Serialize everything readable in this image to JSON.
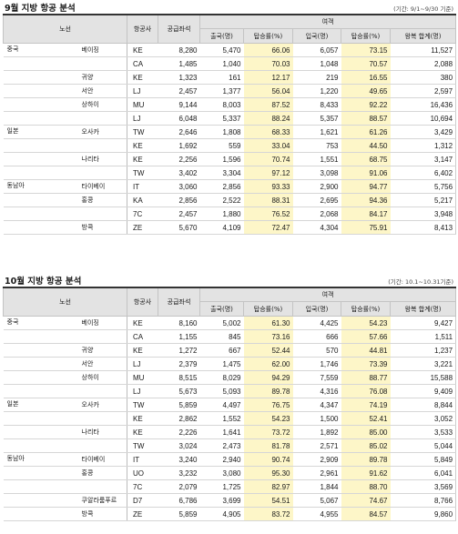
{
  "sept": {
    "title": "9월 지방 항공 분석",
    "period": "(기간: 9/1~9/30 기준)",
    "headers": {
      "route": "노선",
      "airline": "항공사",
      "seats": "공급좌석",
      "passengers": "여객",
      "departure": "출국(명)",
      "dep_rate": "탑승률(%)",
      "arrival": "입국(명)",
      "arr_rate": "탑승률(%)",
      "round_total": "왕복 합계(명)"
    },
    "rows": [
      {
        "region": "중국",
        "route": "베이징",
        "airline": "KE",
        "seats": "8,280",
        "dep": "5,470",
        "dep_rate": "66.06",
        "arr": "6,057",
        "arr_rate": "73.15",
        "total": "11,527"
      },
      {
        "region": "",
        "route": "",
        "airline": "CA",
        "seats": "1,485",
        "dep": "1,040",
        "dep_rate": "70.03",
        "arr": "1,048",
        "arr_rate": "70.57",
        "total": "2,088"
      },
      {
        "region": "",
        "route": "귀양",
        "airline": "KE",
        "seats": "1,323",
        "dep": "161",
        "dep_rate": "12.17",
        "arr": "219",
        "arr_rate": "16.55",
        "total": "380"
      },
      {
        "region": "",
        "route": "서안",
        "airline": "LJ",
        "seats": "2,457",
        "dep": "1,377",
        "dep_rate": "56.04",
        "arr": "1,220",
        "arr_rate": "49.65",
        "total": "2,597"
      },
      {
        "region": "",
        "route": "상하이",
        "airline": "MU",
        "seats": "9,144",
        "dep": "8,003",
        "dep_rate": "87.52",
        "arr": "8,433",
        "arr_rate": "92.22",
        "total": "16,436"
      },
      {
        "region": "",
        "route": "",
        "airline": "LJ",
        "seats": "6,048",
        "dep": "5,337",
        "dep_rate": "88.24",
        "arr": "5,357",
        "arr_rate": "88.57",
        "total": "10,694"
      },
      {
        "region": "일본",
        "route": "오사카",
        "airline": "TW",
        "seats": "2,646",
        "dep": "1,808",
        "dep_rate": "68.33",
        "arr": "1,621",
        "arr_rate": "61.26",
        "total": "3,429"
      },
      {
        "region": "",
        "route": "",
        "airline": "KE",
        "seats": "1,692",
        "dep": "559",
        "dep_rate": "33.04",
        "arr": "753",
        "arr_rate": "44.50",
        "total": "1,312"
      },
      {
        "region": "",
        "route": "나리타",
        "airline": "KE",
        "seats": "2,256",
        "dep": "1,596",
        "dep_rate": "70.74",
        "arr": "1,551",
        "arr_rate": "68.75",
        "total": "3,147"
      },
      {
        "region": "",
        "route": "",
        "airline": "TW",
        "seats": "3,402",
        "dep": "3,304",
        "dep_rate": "97.12",
        "arr": "3,098",
        "arr_rate": "91.06",
        "total": "6,402"
      },
      {
        "region": "동남아",
        "route": "타이베이",
        "airline": "IT",
        "seats": "3,060",
        "dep": "2,856",
        "dep_rate": "93.33",
        "arr": "2,900",
        "arr_rate": "94.77",
        "total": "5,756"
      },
      {
        "region": "",
        "route": "홍콩",
        "airline": "KA",
        "seats": "2,856",
        "dep": "2,522",
        "dep_rate": "88.31",
        "arr": "2,695",
        "arr_rate": "94.36",
        "total": "5,217"
      },
      {
        "region": "",
        "route": "",
        "airline": "7C",
        "seats": "2,457",
        "dep": "1,880",
        "dep_rate": "76.52",
        "arr": "2,068",
        "arr_rate": "84.17",
        "total": "3,948"
      },
      {
        "region": "",
        "route": "방콕",
        "airline": "ZE",
        "seats": "5,670",
        "dep": "4,109",
        "dep_rate": "72.47",
        "arr": "4,304",
        "arr_rate": "75.91",
        "total": "8,413"
      }
    ]
  },
  "oct": {
    "title": "10월 지방 항공 분석",
    "period": "(기간: 10.1~10.31기준)",
    "headers": {
      "route": "노선",
      "airline": "항공사",
      "seats": "공급좌석",
      "passengers": "여객",
      "departure": "출국(명)",
      "dep_rate": "탑승률(%)",
      "arrival": "입국(명)",
      "arr_rate": "탑승률(%)",
      "round_total": "왕복 합계(명)"
    },
    "rows": [
      {
        "region": "중국",
        "route": "베이징",
        "airline": "KE",
        "seats": "8,160",
        "dep": "5,002",
        "dep_rate": "61.30",
        "arr": "4,425",
        "arr_rate": "54.23",
        "total": "9,427"
      },
      {
        "region": "",
        "route": "",
        "airline": "CA",
        "seats": "1,155",
        "dep": "845",
        "dep_rate": "73.16",
        "arr": "666",
        "arr_rate": "57.66",
        "total": "1,511"
      },
      {
        "region": "",
        "route": "귀양",
        "airline": "KE",
        "seats": "1,272",
        "dep": "667",
        "dep_rate": "52.44",
        "arr": "570",
        "arr_rate": "44.81",
        "total": "1,237"
      },
      {
        "region": "",
        "route": "서안",
        "airline": "LJ",
        "seats": "2,379",
        "dep": "1,475",
        "dep_rate": "62.00",
        "arr": "1,746",
        "arr_rate": "73.39",
        "total": "3,221"
      },
      {
        "region": "",
        "route": "상하이",
        "airline": "MU",
        "seats": "8,515",
        "dep": "8,029",
        "dep_rate": "94.29",
        "arr": "7,559",
        "arr_rate": "88.77",
        "total": "15,588"
      },
      {
        "region": "",
        "route": "",
        "airline": "LJ",
        "seats": "5,673",
        "dep": "5,093",
        "dep_rate": "89.78",
        "arr": "4,316",
        "arr_rate": "76.08",
        "total": "9,409"
      },
      {
        "region": "일본",
        "route": "오사카",
        "airline": "TW",
        "seats": "5,859",
        "dep": "4,497",
        "dep_rate": "76.75",
        "arr": "4,347",
        "arr_rate": "74.19",
        "total": "8,844"
      },
      {
        "region": "",
        "route": "",
        "airline": "KE",
        "seats": "2,862",
        "dep": "1,552",
        "dep_rate": "54.23",
        "arr": "1,500",
        "arr_rate": "52.41",
        "total": "3,052"
      },
      {
        "region": "",
        "route": "나리타",
        "airline": "KE",
        "seats": "2,226",
        "dep": "1,641",
        "dep_rate": "73.72",
        "arr": "1,892",
        "arr_rate": "85.00",
        "total": "3,533"
      },
      {
        "region": "",
        "route": "",
        "airline": "TW",
        "seats": "3,024",
        "dep": "2,473",
        "dep_rate": "81.78",
        "arr": "2,571",
        "arr_rate": "85.02",
        "total": "5,044"
      },
      {
        "region": "동남아",
        "route": "타이베이",
        "airline": "IT",
        "seats": "3,240",
        "dep": "2,940",
        "dep_rate": "90.74",
        "arr": "2,909",
        "arr_rate": "89.78",
        "total": "5,849"
      },
      {
        "region": "",
        "route": "홍콩",
        "airline": "UO",
        "seats": "3,232",
        "dep": "3,080",
        "dep_rate": "95.30",
        "arr": "2,961",
        "arr_rate": "91.62",
        "total": "6,041"
      },
      {
        "region": "",
        "route": "",
        "airline": "7C",
        "seats": "2,079",
        "dep": "1,725",
        "dep_rate": "82.97",
        "arr": "1,844",
        "arr_rate": "88.70",
        "total": "3,569"
      },
      {
        "region": "",
        "route": "쿠알라룸푸르",
        "airline": "D7",
        "seats": "6,786",
        "dep": "3,699",
        "dep_rate": "54.51",
        "arr": "5,067",
        "arr_rate": "74.67",
        "total": "8,766"
      },
      {
        "region": "",
        "route": "방콕",
        "airline": "ZE",
        "seats": "5,859",
        "dep": "4,905",
        "dep_rate": "83.72",
        "arr": "4,955",
        "arr_rate": "84.57",
        "total": "9,860"
      }
    ]
  },
  "colors": {
    "header_bg": "#e3e3e3",
    "rate_bg": "#fdf6c8",
    "rule": "#333333"
  }
}
